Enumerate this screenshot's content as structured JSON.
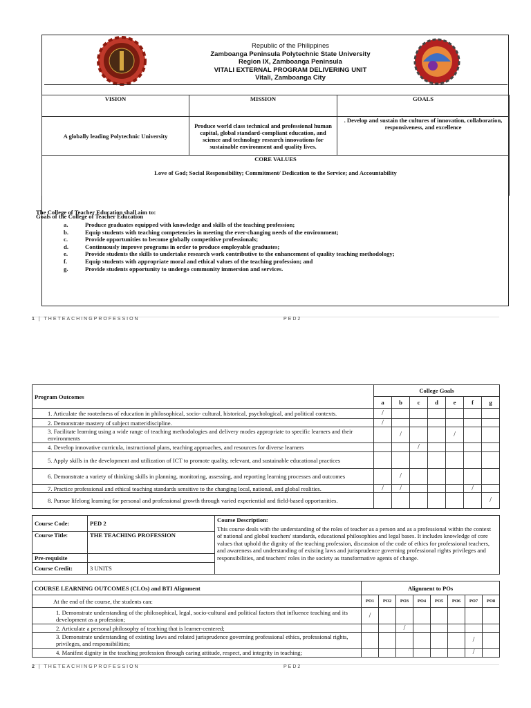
{
  "header": {
    "line1": "Republic of the Philippines",
    "line2": "Zamboanga Peninsula Polytechnic State University",
    "line3": "Region IX, Zamboanga Peninsula",
    "line4": "VITALI EXTERNAL PROGRAM DELIVERING UNIT",
    "line5": "Vitali, Zamboanga City"
  },
  "vmg": {
    "vision_label": "VISION",
    "mission_label": "MISSION",
    "goals_label": "GOALS",
    "vision": "A globally leading Polytechnic University",
    "mission": "Produce world class technical and professional human capital, global standard-compliant education, and science and technology research innovations for sustainable environment and quality lives.",
    "goals": ". Develop and sustain the cultures of innovation, collaboration, responsiveness, and excellence",
    "core_values_label": "CORE VALUES",
    "core_values": "Love of God; Social Responsibility; Commitment/ Dedication to the Service; and Accountability"
  },
  "college": {
    "title": "Goals of the College of Teacher Education",
    "intro": "The College of Teacher Education shall aim to:",
    "items": [
      {
        "letter": "a.",
        "text": "Produce graduates equipped with knowledge and skills of the teaching profession;"
      },
      {
        "letter": "b.",
        "text": "Equip students with teaching competencies in meeting the ever-changing needs of the environment;"
      },
      {
        "letter": "c.",
        "text": "Provide opportunities to become globally competitive professionals;"
      },
      {
        "letter": "d.",
        "text": "Continuously improve programs in order to produce employable graduates;"
      },
      {
        "letter": "e.",
        "text": "Provide students the skills to undertake research work contributive to the enhancement of quality teaching methodology;"
      },
      {
        "letter": "f.",
        "text": "Equip students with appropriate moral and ethical values of the teaching profession; and"
      },
      {
        "letter": "g.",
        "text": "Provide students opportunity to undergo community immersion and services."
      }
    ]
  },
  "footer1": {
    "page": "1",
    "sep": " | ",
    "title": "THETEACHINGPROFESSION",
    "code": "PED2"
  },
  "footer2": {
    "page": "2",
    "sep": " | ",
    "title": "THETEACHINGPROFESSION",
    "code": "PED2"
  },
  "po_table": {
    "label": "Program Outcomes",
    "group": "College Goals",
    "columns": [
      "a",
      "b",
      "c",
      "d",
      "e",
      "f",
      "g"
    ],
    "rows": [
      {
        "text": "1. Articulate the rootedness of education in philosophical, socio- cultural, historical, psychological, and political contexts.",
        "marks": [
          "/",
          "",
          "",
          "",
          "",
          "",
          ""
        ]
      },
      {
        "text": "2. Demonstrate mastery of subject matter/discipline.",
        "marks": [
          "/",
          "",
          "",
          "",
          "",
          "",
          ""
        ]
      },
      {
        "text": "3. Facilitate learning using a wide range of teaching methodologies and delivery modes appropriate to specific learners and their environments",
        "marks": [
          "",
          "/",
          "",
          "",
          "/",
          "",
          ""
        ]
      },
      {
        "text": "4. Develop innovative curricula, instructional plans, teaching approaches, and resources for diverse learners",
        "marks": [
          "",
          "",
          "/",
          "",
          "",
          "",
          ""
        ]
      },
      {
        "text": "5. Apply skills in the development and utilization of ICT to promote quality, relevant, and sustainable educational practices",
        "marks": [
          "",
          "",
          "",
          "",
          "",
          "",
          ""
        ]
      },
      {
        "text": "6. Demonstrate a variety of thinking skills in planning, monitoring, assessing, and reporting learning processes and outcomes",
        "marks": [
          "",
          "/",
          "",
          "",
          "",
          "",
          ""
        ]
      },
      {
        "text": "7. Practice professional and ethical teaching standards sensitive to the changing local, national, and global realities.",
        "marks": [
          "/",
          "/",
          "",
          "",
          "",
          "/",
          ""
        ]
      },
      {
        "text": "8. Pursue lifelong learning for personal and professional growth through varied experiential and field-based opportunities.",
        "marks": [
          "",
          "",
          "",
          "",
          "",
          "",
          "/"
        ]
      }
    ]
  },
  "course": {
    "code_label": "Course Code:",
    "code": "PED 2",
    "title_label": "Course Title:",
    "title": "THE TEACHING PROFESSION",
    "prereq_label": "Pre-requisite",
    "prereq": "",
    "credit_label": "Course Credit:",
    "credit": "3 UNITS",
    "desc_label": "Course Description:",
    "desc": "This course deals with the understanding of the roles of teacher as a person and as a professional within the context of national and global teachers' standards, educational philosophies and legal bases. It includes knowledge of core values that uphold the dignity of the teaching profession, discussion of the code of ethics for professional teachers, and awareness and understanding of existing laws and jurisprudence governing professional rights privileges and responsibilities, and teachers' roles in the society as transformative agents of change."
  },
  "clo_table": {
    "label": "COURSE LEARNING OUTCOMES (CLOs) and BTI Alignment",
    "group": "Alignment to POs",
    "intro": "At the end of the course, the students can:",
    "columns": [
      "PO1",
      "PO2",
      "PO3",
      "PO4",
      "PO5",
      "PO6",
      "PO7",
      "PO8"
    ],
    "rows": [
      {
        "text": "1. Demonstrate understanding of the philosophical, legal, socio-cultural and political factors that influence teaching and its development as a profession;",
        "marks": [
          "/",
          "",
          "",
          "",
          "",
          "",
          "",
          ""
        ]
      },
      {
        "text": "2. Articulate a personal philosophy of teaching that is learner-centered;",
        "marks": [
          "",
          "",
          "/",
          "",
          "",
          "",
          "",
          ""
        ]
      },
      {
        "text": "3. Demonstrate understanding of existing laws and related jurisprudence governing professional ethics, professional rights, privileges, and responsibilities;",
        "marks": [
          "",
          "",
          "",
          "",
          "",
          "",
          "/",
          ""
        ]
      },
      {
        "text": "4. Manifest dignity in the teaching profession through caring attitude, respect, and integrity in teaching;",
        "marks": [
          "",
          "",
          "",
          "",
          "",
          "",
          "/",
          ""
        ]
      }
    ]
  }
}
